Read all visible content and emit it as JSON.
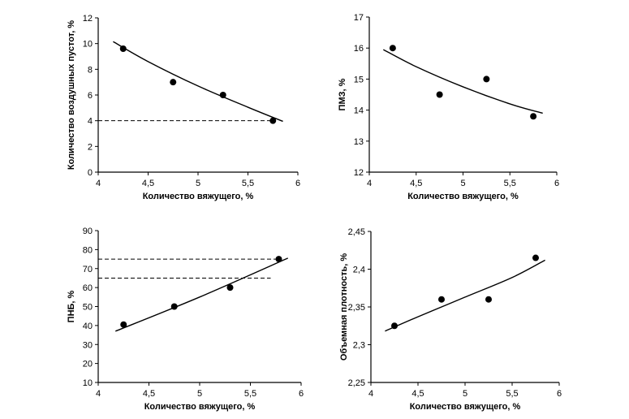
{
  "chart_data": [
    {
      "id": "air-voids",
      "type": "scatter",
      "xlabel": "Количество вяжущего, %",
      "ylabel": "Количество воздушных пустот, %",
      "xlim": [
        4,
        6
      ],
      "ylim": [
        0,
        12
      ],
      "xticks": [
        4,
        4.5,
        5,
        5.5,
        6
      ],
      "xtick_labels": [
        "4",
        "4,5",
        "5",
        "5,5",
        "6"
      ],
      "yticks": [
        0,
        2,
        4,
        6,
        8,
        10,
        12
      ],
      "ytick_labels": [
        "0",
        "2",
        "4",
        "6",
        "8",
        "10",
        "12"
      ],
      "points": [
        [
          4.25,
          9.6
        ],
        [
          4.75,
          7.0
        ],
        [
          5.25,
          6.0
        ],
        [
          5.75,
          4.0
        ]
      ],
      "trend_curve": [
        [
          4.15,
          10.15
        ],
        [
          4.5,
          8.6
        ],
        [
          5.0,
          6.7
        ],
        [
          5.5,
          5.05
        ],
        [
          5.85,
          3.95
        ]
      ],
      "reference_lines": [
        {
          "y": 4,
          "x_from": 4,
          "x_to": 5.75
        }
      ]
    },
    {
      "id": "vma",
      "type": "scatter",
      "xlabel": "Количество вяжущего, %",
      "ylabel": "ПМЗ, %",
      "xlim": [
        4,
        6
      ],
      "ylim": [
        12,
        17
      ],
      "xticks": [
        4,
        4.5,
        5,
        5.5,
        6
      ],
      "xtick_labels": [
        "4",
        "4,5",
        "5",
        "5,5",
        "6"
      ],
      "yticks": [
        12,
        13,
        14,
        15,
        16,
        17
      ],
      "ytick_labels": [
        "12",
        "13",
        "14",
        "15",
        "16",
        "17"
      ],
      "points": [
        [
          4.25,
          16.0
        ],
        [
          4.75,
          14.5
        ],
        [
          5.25,
          15.0
        ],
        [
          5.75,
          13.8
        ]
      ],
      "trend_curve": [
        [
          4.15,
          15.95
        ],
        [
          4.5,
          15.4
        ],
        [
          5.0,
          14.75
        ],
        [
          5.5,
          14.2
        ],
        [
          5.85,
          13.9
        ]
      ],
      "reference_lines": []
    },
    {
      "id": "vfa",
      "type": "scatter",
      "xlabel": "Количество вяжущего, %",
      "ylabel": "ПНБ, %",
      "xlim": [
        4,
        6
      ],
      "ylim": [
        10,
        90
      ],
      "xticks": [
        4,
        4.5,
        5,
        5.5,
        6
      ],
      "xtick_labels": [
        "4",
        "4,5",
        "5",
        "5,5",
        "6"
      ],
      "yticks": [
        10,
        20,
        30,
        40,
        50,
        60,
        70,
        80,
        90
      ],
      "ytick_labels": [
        "10",
        "20",
        "30",
        "40",
        "50",
        "60",
        "70",
        "80",
        "90"
      ],
      "points": [
        [
          4.25,
          40.5
        ],
        [
          4.75,
          50.0
        ],
        [
          5.3,
          60.0
        ],
        [
          5.78,
          75.0
        ]
      ],
      "trend_curve": [
        [
          4.17,
          37.0
        ],
        [
          5.0,
          55.0
        ],
        [
          5.87,
          75.5
        ]
      ],
      "reference_lines": [
        {
          "y": 75,
          "x_from": 4,
          "x_to": 5.78
        },
        {
          "y": 65,
          "x_from": 4,
          "x_to": 5.7
        }
      ]
    },
    {
      "id": "density",
      "type": "scatter",
      "xlabel": "Количество вяжущего, %",
      "ylabel": "Объемная плотность, %",
      "xlim": [
        4,
        6
      ],
      "ylim": [
        2.25,
        2.45
      ],
      "xticks": [
        4,
        4.5,
        5,
        5.5,
        6
      ],
      "xtick_labels": [
        "4",
        "4,5",
        "5",
        "5,5",
        "6"
      ],
      "yticks": [
        2.25,
        2.3,
        2.35,
        2.4,
        2.45
      ],
      "ytick_labels": [
        "2,25",
        "2,3",
        "2,35",
        "2,4",
        "2,45"
      ],
      "points": [
        [
          4.25,
          2.325
        ],
        [
          4.75,
          2.36
        ],
        [
          5.25,
          2.36
        ],
        [
          5.75,
          2.415
        ]
      ],
      "trend_curve": [
        [
          4.15,
          2.318
        ],
        [
          4.5,
          2.337
        ],
        [
          5.0,
          2.363
        ],
        [
          5.5,
          2.389
        ],
        [
          5.85,
          2.412
        ]
      ],
      "reference_lines": []
    }
  ]
}
